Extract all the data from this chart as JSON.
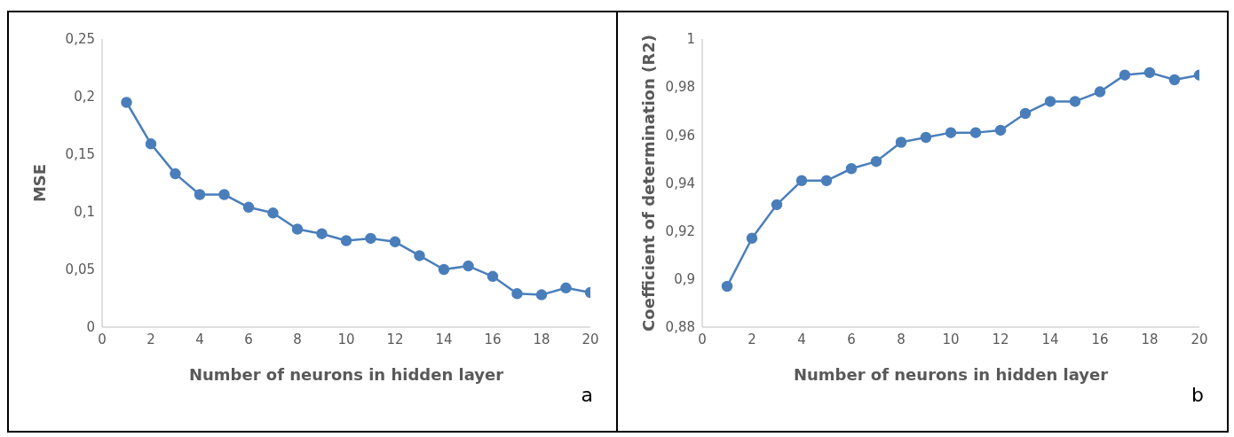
{
  "chart_data": [
    {
      "type": "line",
      "xlabel": "Number of neurons in hidden layer",
      "ylabel": "MSE",
      "x": [
        1,
        2,
        3,
        4,
        5,
        6,
        7,
        8,
        9,
        10,
        11,
        12,
        13,
        14,
        15,
        16,
        17,
        18,
        19,
        20
      ],
      "series": [
        {
          "color": "#4a7ebb",
          "values": [
            0.195,
            0.159,
            0.133,
            0.115,
            0.115,
            0.104,
            0.099,
            0.085,
            0.081,
            0.075,
            0.077,
            0.074,
            0.062,
            0.05,
            0.053,
            0.044,
            0.029,
            0.028,
            0.034,
            0.03
          ]
        }
      ],
      "xlim": [
        0,
        20
      ],
      "xticks": [
        0,
        2,
        4,
        6,
        8,
        10,
        12,
        14,
        16,
        18,
        20
      ],
      "ylim": [
        0,
        0.25
      ],
      "yticks": [
        0,
        {
          "value": 0.05,
          "label": "0,05"
        },
        {
          "value": 0.1,
          "label": "0,1"
        },
        {
          "value": 0.15,
          "label": "0,15"
        },
        {
          "value": 0.2,
          "label": "0,2"
        },
        {
          "value": 0.25,
          "label": "0,25"
        }
      ],
      "grid": false,
      "legend": false,
      "marker": "circle",
      "line_style": "solid",
      "annotations": [
        "a"
      ]
    },
    {
      "type": "line",
      "xlabel": "Number of neurons in hidden layer",
      "ylabel": "Coefficient of determination (R2)",
      "x": [
        1,
        2,
        3,
        4,
        5,
        6,
        7,
        8,
        9,
        10,
        11,
        12,
        13,
        14,
        15,
        16,
        17,
        18,
        19,
        20
      ],
      "series": [
        {
          "color": "#4a7ebb",
          "values": [
            0.897,
            0.917,
            0.931,
            0.941,
            0.941,
            0.946,
            0.949,
            0.957,
            0.959,
            0.961,
            0.961,
            0.962,
            0.969,
            0.974,
            0.974,
            0.978,
            0.985,
            0.986,
            0.983,
            0.985
          ]
        }
      ],
      "xlim": [
        0,
        20
      ],
      "xticks": [
        0,
        2,
        4,
        6,
        8,
        10,
        12,
        14,
        16,
        18,
        20
      ],
      "ylim": [
        0.88,
        1
      ],
      "yticks": [
        {
          "value": 0.88,
          "label": "0,88"
        },
        {
          "value": 0.9,
          "label": "0,9"
        },
        {
          "value": 0.92,
          "label": "0,92"
        },
        {
          "value": 0.94,
          "label": "0,94"
        },
        {
          "value": 0.96,
          "label": "0,96"
        },
        {
          "value": 0.98,
          "label": "0,98"
        },
        1
      ],
      "grid": false,
      "legend": false,
      "marker": "circle",
      "line_style": "solid",
      "annotations": [
        "b"
      ]
    }
  ]
}
